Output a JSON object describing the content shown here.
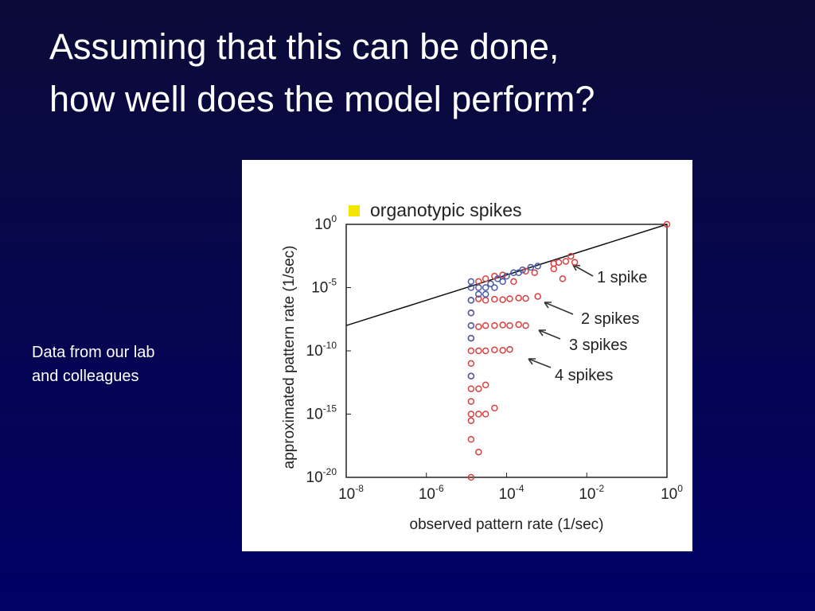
{
  "title_lines": [
    "Assuming that this can be done,",
    "how well does the model perform?"
  ],
  "note_lines": [
    "Data from our lab",
    "and colleagues"
  ],
  "chart_data": {
    "type": "scatter",
    "xlabel": "observed pattern rate (1/sec)",
    "ylabel": "approximated pattern rate (1/sec)",
    "xscale": "log",
    "yscale": "log",
    "xlim": [
      1e-08,
      1
    ],
    "ylim": [
      1e-20,
      1
    ],
    "xticks": [
      {
        "value": 1e-08,
        "label": "10",
        "exponent": "-8"
      },
      {
        "value": 1e-06,
        "label": "10",
        "exponent": "-6"
      },
      {
        "value": 0.0001,
        "label": "10",
        "exponent": "-4"
      },
      {
        "value": 0.01,
        "label": "10",
        "exponent": "-2"
      },
      {
        "value": 1,
        "label": "10",
        "exponent": "0"
      }
    ],
    "yticks": [
      {
        "value": 1,
        "label": "10",
        "exponent": "0"
      },
      {
        "value": 1e-05,
        "label": "10",
        "exponent": "-5"
      },
      {
        "value": 1e-10,
        "label": "10",
        "exponent": "-10"
      },
      {
        "value": 1e-15,
        "label": "10",
        "exponent": "-15"
      },
      {
        "value": 1e-20,
        "label": "10",
        "exponent": "-20"
      }
    ],
    "identity_line": true,
    "legend": {
      "label": "organotypic spikes",
      "color": "#f2e600"
    },
    "series": [
      {
        "color": "#d94040",
        "x": [
          2e-05,
          3e-05,
          5e-05,
          8e-05,
          0.00015,
          0.0003,
          0.0005,
          0.0015,
          0.002,
          0.003,
          0.004,
          0.0025,
          0.005,
          1,
          0.0015,
          1.3e-05,
          2e-05,
          3e-05,
          5e-05,
          8e-05,
          0.00012,
          0.0002,
          0.0003,
          0.0006,
          1.3e-05,
          2e-05,
          3e-05,
          5e-05,
          8e-05,
          0.00012,
          0.0002,
          0.0003,
          1.3e-05,
          2e-05,
          3e-05,
          5e-05,
          8e-05,
          0.00012,
          1.3e-05,
          1.3e-05,
          2e-05,
          3e-05,
          1.3e-05,
          2e-05,
          3e-05,
          5e-05,
          1.3e-05,
          2e-05,
          1.3e-05,
          1.3e-05,
          1.3e-05,
          1.3e-05,
          1.3e-05,
          1.3e-05
        ],
        "y": [
          3e-05,
          5e-05,
          8e-05,
          0.0001,
          3e-05,
          0.0002,
          0.00015,
          0.0008,
          0.001,
          0.0012,
          0.003,
          5e-05,
          0.001,
          1,
          0.0003,
          1e-06,
          1.3e-06,
          1e-06,
          1.2e-06,
          1.1e-06,
          1.3e-06,
          1.5e-06,
          1.4e-06,
          2e-06,
          1e-08,
          8e-09,
          1e-08,
          1e-08,
          1.1e-08,
          1e-08,
          1.2e-08,
          1e-08,
          1e-10,
          1e-10,
          1e-10,
          1.2e-10,
          1.1e-10,
          1.3e-10,
          1e-12,
          1e-13,
          1e-13,
          2e-13,
          1e-15,
          1e-15,
          1e-15,
          3e-15,
          1e-17,
          1e-18,
          1e-20,
          1e-07,
          1e-09,
          1e-11,
          1e-14,
          3e-16
        ]
      },
      {
        "color": "#4a5aa8",
        "x": [
          1.3e-05,
          1.3e-05,
          1.3e-05,
          1.3e-05,
          1.3e-05,
          1.3e-05,
          1.3e-05,
          2e-05,
          2e-05,
          3e-05,
          4e-05,
          6e-05,
          0.0001,
          0.00015,
          0.00025,
          0.0004,
          0.0006,
          3e-05,
          5e-05,
          8e-05,
          0.0002
        ],
        "y": [
          3e-05,
          1e-05,
          1e-06,
          1e-07,
          1e-08,
          1e-09,
          1e-12,
          1e-05,
          3e-06,
          1e-05,
          2e-05,
          5e-05,
          8e-05,
          0.00015,
          0.00025,
          0.0004,
          0.0005,
          3e-06,
          1e-05,
          3e-05,
          0.00015
        ]
      }
    ],
    "annotations": [
      "1 spike",
      "2 spikes",
      "3 spikes",
      "4 spikes"
    ]
  }
}
